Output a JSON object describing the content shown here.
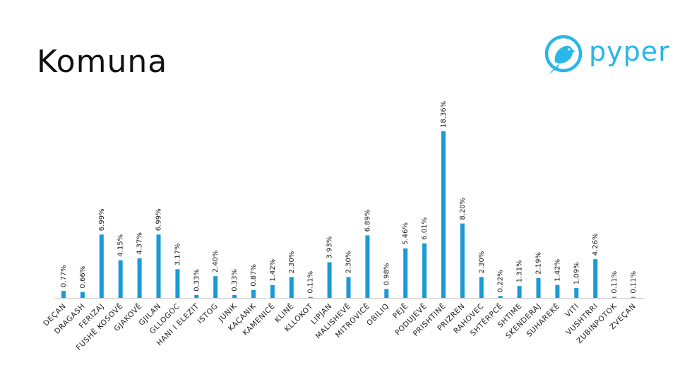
{
  "page": {
    "title": "Komuna"
  },
  "logo": {
    "text": "pyper",
    "icon": "bird-icon",
    "color": "#29b6e8"
  },
  "chart_data": {
    "type": "bar",
    "bar_color": "#1a9ad6",
    "ylim": [
      0,
      20
    ],
    "grid": false,
    "categories": [
      "DEÇAN",
      "DRAGASH",
      "FERIZAJ",
      "FUSHË KOSOVË",
      "GJAKOVË",
      "GJILAN",
      "GLLOGOC",
      "HANI I ELEZIT",
      "ISTOG",
      "JUNIK",
      "KAÇANIK",
      "KAMENICË",
      "KLINË",
      "KLLOKOT",
      "LIPJAN",
      "MALISHEVË",
      "MITROVICË",
      "OBILIQ",
      "PEJË",
      "PODUJEVË",
      "PRISHTINË",
      "PRIZREN",
      "RAHOVEC",
      "SHTËRPCË",
      "SHTIME",
      "SKENDERAJ",
      "SUHAREKË",
      "VITI",
      "VUSHTRRI",
      "ZUBINPOTOK",
      "ZVEÇAN"
    ],
    "values": [
      0.77,
      0.66,
      6.99,
      4.15,
      4.37,
      6.99,
      3.17,
      0.33,
      2.4,
      0.33,
      0.87,
      1.42,
      2.3,
      0.11,
      3.93,
      2.3,
      6.89,
      0.98,
      5.46,
      6.01,
      18.36,
      8.2,
      2.3,
      0.22,
      1.31,
      2.19,
      1.42,
      1.09,
      4.26,
      0.11,
      0.11
    ],
    "data_labels": [
      "0.77%",
      "0.66%",
      "6.99%",
      "4.15%",
      "4.37%",
      "6.99%",
      "3.17%",
      "0.33%",
      "2.40%",
      "0.33%",
      "0.87%",
      "1.42%",
      "2.30%",
      "0.11%",
      "3.93%",
      "2.30%",
      "6.89%",
      "0.98%",
      "5.46%",
      "6.01%",
      "18.36%",
      "8.20%",
      "2.30%",
      "0.22%",
      "1.31%",
      "2.19%",
      "1.42%",
      "1.09%",
      "4.26%",
      "0.11%",
      "0.11%"
    ]
  }
}
